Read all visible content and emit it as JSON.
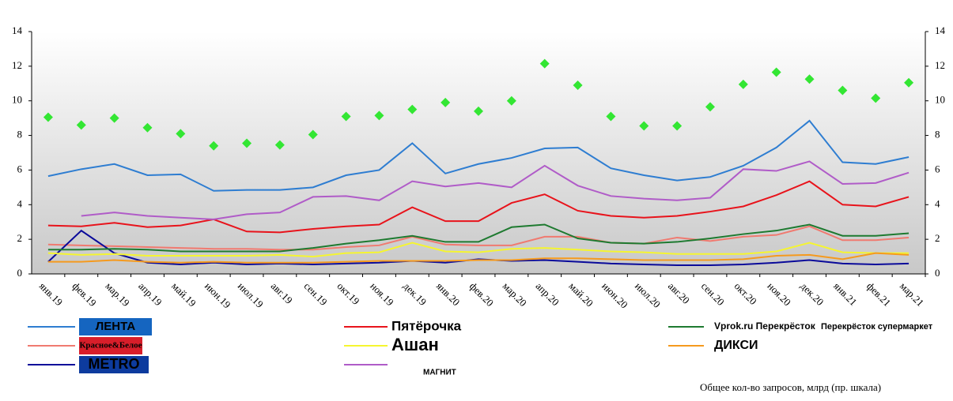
{
  "chart_data": {
    "type": "line",
    "categories": [
      "янв.19",
      "фев.19",
      "мар.19",
      "апр.19",
      "май.19",
      "июн.19",
      "июл.19",
      "авг.19",
      "сен.19",
      "окт.19",
      "ноя.19",
      "дек.19",
      "янв.20",
      "фев.20",
      "мар.20",
      "апр.20",
      "май.20",
      "июн.20",
      "июл.20",
      "авг.20",
      "сен.20",
      "окт.20",
      "ноя.20",
      "дек.20",
      "янв.21",
      "фев.21",
      "мар.21"
    ],
    "ylim": [
      0,
      14
    ],
    "yticks": [
      0,
      2,
      4,
      6,
      8,
      10,
      12,
      14
    ],
    "y2lim": [
      0,
      14
    ],
    "y2ticks": [
      0,
      2,
      4,
      6,
      8,
      10,
      12,
      14
    ],
    "legend_extra_logo": "Перекрёсток супермаркет",
    "series": [
      {
        "name": "ЛЕНТА",
        "color": "#2e7dd1",
        "values": [
          5.65,
          6.05,
          6.35,
          5.7,
          5.75,
          4.8,
          4.85,
          4.85,
          5.0,
          5.7,
          6.0,
          7.55,
          5.8,
          6.35,
          6.7,
          7.25,
          7.3,
          6.1,
          5.7,
          5.4,
          5.6,
          6.25,
          7.3,
          8.85,
          6.45,
          6.35,
          6.75
        ]
      },
      {
        "name": "Красное&Белое",
        "color": "#f07a70",
        "values": [
          1.7,
          1.65,
          1.6,
          1.55,
          1.5,
          1.45,
          1.45,
          1.4,
          1.4,
          1.55,
          1.65,
          2.15,
          1.7,
          1.65,
          1.65,
          2.15,
          2.15,
          1.8,
          1.75,
          2.1,
          1.9,
          2.15,
          2.25,
          2.75,
          1.95,
          1.95,
          2.1
        ]
      },
      {
        "name": "METRO",
        "color": "#0a0a9a",
        "values": [
          0.7,
          2.5,
          1.2,
          0.65,
          0.55,
          0.65,
          0.55,
          0.6,
          0.55,
          0.6,
          0.65,
          0.75,
          0.65,
          0.85,
          0.75,
          0.8,
          0.7,
          0.6,
          0.55,
          0.5,
          0.5,
          0.55,
          0.65,
          0.8,
          0.6,
          0.55,
          0.6
        ]
      },
      {
        "name": "Пятёрочка",
        "color": "#e8131b",
        "values": [
          2.8,
          2.75,
          2.95,
          2.7,
          2.8,
          3.15,
          2.45,
          2.4,
          2.6,
          2.75,
          2.85,
          3.85,
          3.05,
          3.05,
          4.1,
          4.6,
          3.65,
          3.35,
          3.25,
          3.35,
          3.6,
          3.9,
          4.55,
          5.35,
          4.0,
          3.9,
          4.45
        ]
      },
      {
        "name": "Ашан",
        "color": "#f5f530",
        "values": [
          1.2,
          1.1,
          1.15,
          1.05,
          1.05,
          1.05,
          1.05,
          1.1,
          1.0,
          1.2,
          1.25,
          1.8,
          1.3,
          1.25,
          1.45,
          1.5,
          1.4,
          1.3,
          1.25,
          1.15,
          1.15,
          1.15,
          1.3,
          1.8,
          1.25,
          1.2,
          1.2
        ]
      },
      {
        "name": "МАГНИТ",
        "color": "#b05cc8",
        "values": [
          null,
          3.35,
          3.55,
          3.35,
          3.25,
          3.15,
          3.45,
          3.55,
          4.45,
          4.5,
          4.25,
          5.35,
          5.05,
          5.25,
          5.0,
          6.25,
          5.1,
          4.5,
          4.35,
          4.25,
          4.4,
          6.05,
          5.95,
          6.5,
          5.2,
          5.25,
          5.85
        ]
      },
      {
        "name": "Vprok.ru Перекрёсток",
        "color": "#1e7a30",
        "values": [
          1.4,
          1.4,
          1.45,
          1.4,
          1.3,
          1.3,
          1.3,
          1.3,
          1.5,
          1.75,
          1.95,
          2.2,
          1.85,
          1.85,
          2.7,
          2.85,
          2.05,
          1.8,
          1.75,
          1.85,
          2.05,
          2.3,
          2.5,
          2.85,
          2.2,
          2.2,
          2.35
        ]
      },
      {
        "name": "ДИКСИ",
        "color": "#f59a1e",
        "values": [
          0.7,
          0.7,
          0.8,
          0.7,
          0.65,
          0.7,
          0.65,
          0.65,
          0.65,
          0.7,
          0.75,
          0.75,
          0.75,
          0.8,
          0.8,
          0.9,
          0.9,
          0.85,
          0.8,
          0.8,
          0.8,
          0.85,
          1.05,
          1.1,
          0.85,
          1.2,
          1.1
        ]
      },
      {
        "name": "Общее кол-во запросов, млрд (пр. шкала)",
        "color": "#33e633",
        "axis": "y2",
        "marker": "diamond",
        "values": [
          9.05,
          8.6,
          9.0,
          8.45,
          8.1,
          7.4,
          7.55,
          7.45,
          8.05,
          9.1,
          9.15,
          9.5,
          9.9,
          9.4,
          10.0,
          12.15,
          10.9,
          9.1,
          8.55,
          8.55,
          9.65,
          10.95,
          11.65,
          11.25,
          10.6,
          10.15,
          11.05
        ]
      }
    ]
  }
}
